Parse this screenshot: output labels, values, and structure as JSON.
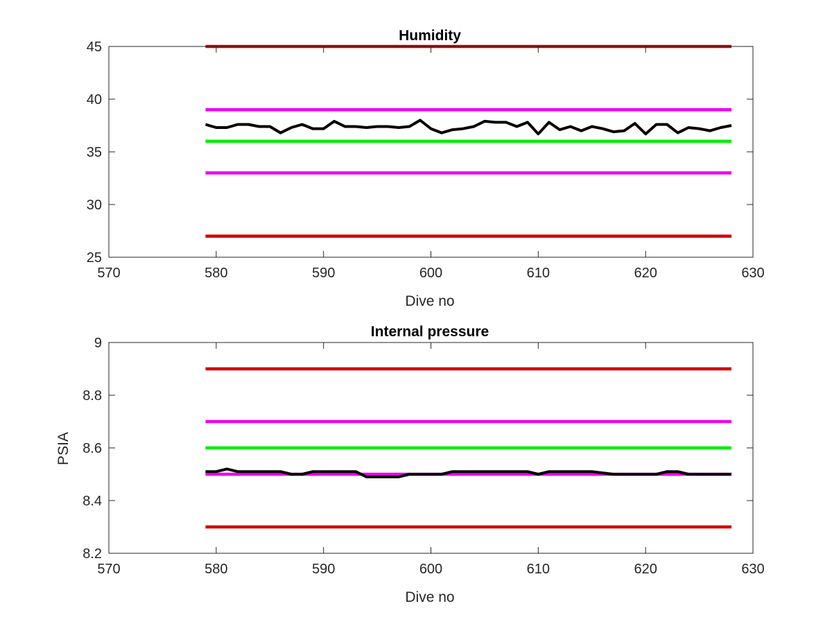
{
  "chart_data": [
    {
      "type": "line",
      "title": "Humidity",
      "xlabel": "Dive no",
      "ylabel": "",
      "xlim": [
        570,
        630
      ],
      "ylim": [
        25,
        45
      ],
      "xticks": [
        "570",
        "580",
        "590",
        "600",
        "610",
        "620",
        "630"
      ],
      "yticks": [
        "25",
        "30",
        "35",
        "40",
        "45"
      ],
      "grid": false,
      "series": [
        {
          "color": "#000000",
          "x": [
            579,
            580,
            581,
            582,
            583,
            584,
            585,
            586,
            587,
            588,
            589,
            590,
            591,
            592,
            593,
            594,
            595,
            596,
            597,
            598,
            599,
            600,
            601,
            602,
            603,
            604,
            605,
            606,
            607,
            608,
            609,
            610,
            611,
            612,
            613,
            614,
            615,
            616,
            617,
            618,
            619,
            620,
            621,
            622,
            623,
            624,
            625,
            626,
            627,
            628
          ],
          "values": [
            37.6,
            37.3,
            37.3,
            37.6,
            37.6,
            37.4,
            37.4,
            36.8,
            37.3,
            37.6,
            37.2,
            37.2,
            37.9,
            37.4,
            37.4,
            37.3,
            37.4,
            37.4,
            37.3,
            37.4,
            38.0,
            37.2,
            36.8,
            37.1,
            37.2,
            37.4,
            37.9,
            37.8,
            37.8,
            37.4,
            37.8,
            36.7,
            37.8,
            37.1,
            37.4,
            37.0,
            37.4,
            37.2,
            36.9,
            37.0,
            37.7,
            36.7,
            37.6,
            37.6,
            36.8,
            37.3,
            37.2,
            37.0,
            37.3,
            37.5
          ]
        },
        {
          "color": "#d00000",
          "x": [
            579,
            628
          ],
          "values": [
            45,
            45
          ]
        },
        {
          "color": "#ee00ee",
          "x": [
            579,
            628
          ],
          "values": [
            39,
            39
          ]
        },
        {
          "color": "#00ee00",
          "x": [
            579,
            628
          ],
          "values": [
            36,
            36
          ]
        },
        {
          "color": "#ee00ee",
          "x": [
            579,
            628
          ],
          "values": [
            33,
            33
          ]
        },
        {
          "color": "#d00000",
          "x": [
            579,
            628
          ],
          "values": [
            27,
            27
          ]
        }
      ]
    },
    {
      "type": "line",
      "title": "Internal pressure",
      "xlabel": "Dive no",
      "ylabel": "PSIA",
      "xlim": [
        570,
        630
      ],
      "ylim": [
        8.2,
        9.0
      ],
      "xticks": [
        "570",
        "580",
        "590",
        "600",
        "610",
        "620",
        "630"
      ],
      "yticks": [
        "8.2",
        "8.4",
        "8.6",
        "8.8",
        "9"
      ],
      "grid": false,
      "series": [
        {
          "color": "#000000",
          "x": [
            579,
            580,
            581,
            582,
            583,
            584,
            585,
            586,
            587,
            588,
            589,
            590,
            591,
            592,
            593,
            594,
            595,
            596,
            597,
            598,
            599,
            600,
            601,
            602,
            603,
            604,
            605,
            606,
            607,
            608,
            609,
            610,
            611,
            612,
            613,
            614,
            615,
            616,
            617,
            618,
            619,
            620,
            621,
            622,
            623,
            624,
            625,
            626,
            627,
            628
          ],
          "values": [
            8.51,
            8.51,
            8.52,
            8.51,
            8.51,
            8.51,
            8.51,
            8.51,
            8.5,
            8.5,
            8.51,
            8.51,
            8.51,
            8.51,
            8.51,
            8.49,
            8.49,
            8.49,
            8.49,
            8.5,
            8.5,
            8.5,
            8.5,
            8.51,
            8.51,
            8.51,
            8.51,
            8.51,
            8.51,
            8.51,
            8.51,
            8.5,
            8.51,
            8.51,
            8.51,
            8.51,
            8.51,
            8.505,
            8.5,
            8.5,
            8.5,
            8.5,
            8.5,
            8.51,
            8.51,
            8.5,
            8.5,
            8.5,
            8.5,
            8.5
          ]
        },
        {
          "color": "#d00000",
          "x": [
            579,
            628
          ],
          "values": [
            8.9,
            8.9
          ]
        },
        {
          "color": "#ee00ee",
          "x": [
            579,
            628
          ],
          "values": [
            8.7,
            8.7
          ]
        },
        {
          "color": "#00ee00",
          "x": [
            579,
            628
          ],
          "values": [
            8.6,
            8.6
          ]
        },
        {
          "color": "#ee00ee",
          "x": [
            579,
            628
          ],
          "values": [
            8.5,
            8.5
          ]
        },
        {
          "color": "#d00000",
          "x": [
            579,
            628
          ],
          "values": [
            8.3,
            8.3
          ]
        }
      ]
    }
  ]
}
